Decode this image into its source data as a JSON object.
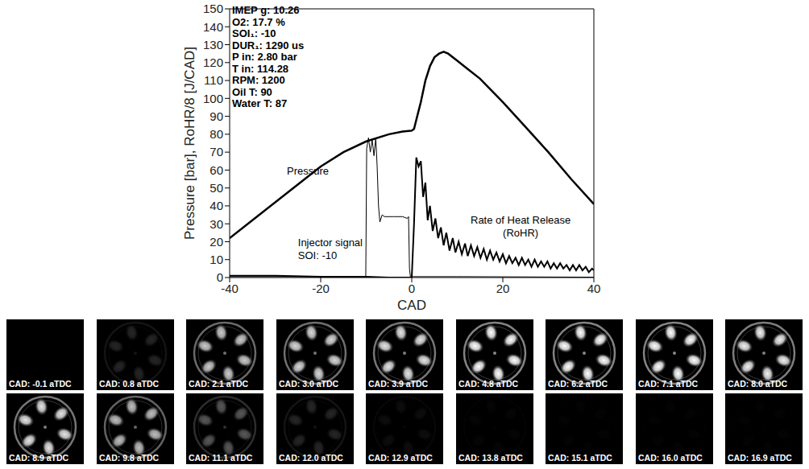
{
  "chart_data": {
    "type": "line",
    "x_label": "CAD",
    "y_label": "Pressure [bar], RoHR/8 [J/CAD]",
    "xlim": [
      -40,
      40
    ],
    "xticks": [
      -40,
      -20,
      0,
      20,
      40
    ],
    "ylim": [
      0,
      150
    ],
    "yticks": [
      0,
      10,
      20,
      30,
      40,
      50,
      60,
      70,
      80,
      90,
      100,
      110,
      120,
      130,
      140,
      150
    ],
    "grid": false,
    "annotations": [
      "IMEP g: 10.26",
      "O2: 17.7 %",
      "SOI₁: -10",
      "DUR₁: 1290 us",
      "P in: 2.80 bar",
      "T in: 114.28",
      "RPM: 1200",
      "Oil T: 90",
      "Water T: 87",
      "SOI: -10"
    ],
    "series": [
      {
        "name": "Pressure",
        "color": "#000000",
        "x": [
          -40,
          -35,
          -30,
          -25,
          -20,
          -15,
          -10,
          -5,
          -2,
          0,
          0.5,
          1,
          1.5,
          2,
          3,
          4,
          5,
          6,
          7,
          8,
          10,
          12,
          15,
          20,
          25,
          30,
          35,
          40
        ],
        "values": [
          22,
          32,
          42,
          52,
          62,
          70,
          76,
          80,
          81.5,
          82,
          83,
          88,
          93,
          98,
          110,
          118,
          123,
          125,
          126,
          125,
          121,
          117,
          111,
          98,
          84,
          70,
          55,
          41
        ]
      },
      {
        "name": "Injector signal",
        "color": "#000000",
        "x": [
          -40,
          -11,
          -10.1,
          -9.9,
          -9.5,
          -9.1,
          -8.7,
          -8.3,
          -7.9,
          -7.6,
          -7.3,
          -7,
          -6.5,
          -6,
          -4,
          -2,
          -1,
          -0.7,
          -0.5,
          -0.3,
          10,
          40
        ],
        "values": [
          0.5,
          0.5,
          0.5,
          72,
          78,
          70,
          77,
          68,
          78,
          62,
          40,
          31,
          35,
          34,
          34,
          34,
          33,
          34,
          5,
          0.5,
          0.5,
          0.2
        ]
      },
      {
        "name": "Rate of Heat Release (RoHR)",
        "color": "#000000",
        "x": [
          -40,
          -30,
          -20,
          -10,
          -5,
          -1,
          0,
          0.5,
          1,
          1.5,
          2,
          2.5,
          3,
          3.5,
          4,
          4.6,
          5.2,
          5.8,
          6.4,
          7,
          7.6,
          8.3,
          9,
          9.6,
          10.3,
          11,
          11.7,
          12.3,
          13,
          13.7,
          14.4,
          15.1,
          15.8,
          16.5,
          17.2,
          17.9,
          18.6,
          19.3,
          20,
          20.7,
          21.4,
          22.1,
          22.8,
          23.5,
          24.2,
          24.9,
          25.6,
          26.3,
          27,
          27.7,
          28.4,
          29.1,
          29.8,
          30.5,
          31.2,
          31.9,
          32.6,
          33.3,
          34,
          34.7,
          35.4,
          36.1,
          36.8,
          37.5,
          38.2,
          38.9,
          39.6,
          40
        ],
        "values": [
          1,
          1,
          0.5,
          0.5,
          0,
          0,
          0,
          30,
          67,
          62,
          65,
          45,
          53,
          32,
          40,
          26,
          33,
          22,
          28,
          18,
          25,
          15,
          22,
          14,
          20,
          13,
          19,
          12,
          18,
          12,
          17,
          11,
          16,
          10,
          15,
          10,
          14,
          9,
          13,
          8,
          12,
          8,
          11,
          7,
          11,
          7,
          10,
          6,
          10,
          6,
          9,
          6,
          9,
          5,
          8,
          5,
          8,
          5,
          7,
          4,
          7,
          4,
          7,
          4,
          6,
          3,
          5,
          4
        ]
      }
    ]
  },
  "frames": [
    {
      "label": "CAD: -0.1 aTDC",
      "luminosity": 0
    },
    {
      "label": "CAD: 0.8 aTDC",
      "luminosity": 0.15
    },
    {
      "label": "CAD: 2.1 aTDC",
      "luminosity": 0.8
    },
    {
      "label": "CAD: 3.0 aTDC",
      "luminosity": 0.85
    },
    {
      "label": "CAD: 3.9 aTDC",
      "luminosity": 0.9
    },
    {
      "label": "CAD: 4.8 aTDC",
      "luminosity": 1
    },
    {
      "label": "CAD: 6.2 aTDC",
      "luminosity": 1
    },
    {
      "label": "CAD: 7.1 aTDC",
      "luminosity": 1
    },
    {
      "label": "CAD: 8.0 aTDC",
      "luminosity": 0.95
    },
    {
      "label": "CAD: 8.9 aTDC",
      "luminosity": 0.9
    },
    {
      "label": "CAD: 9.8 aTDC",
      "luminosity": 0.75
    },
    {
      "label": "CAD: 11.1 aTDC",
      "luminosity": 0.35
    },
    {
      "label": "CAD: 12.0 aTDC",
      "luminosity": 0.15
    },
    {
      "label": "CAD: 12.9 aTDC",
      "luminosity": 0.05
    },
    {
      "label": "CAD: 13.8 aTDC",
      "luminosity": 0.02
    },
    {
      "label": "CAD: 15.1 aTDC",
      "luminosity": 0.01
    },
    {
      "label": "CAD: 16.0 aTDC",
      "luminosity": 0.01
    },
    {
      "label": "CAD: 16.9 aTDC",
      "luminosity": 0.01
    }
  ]
}
